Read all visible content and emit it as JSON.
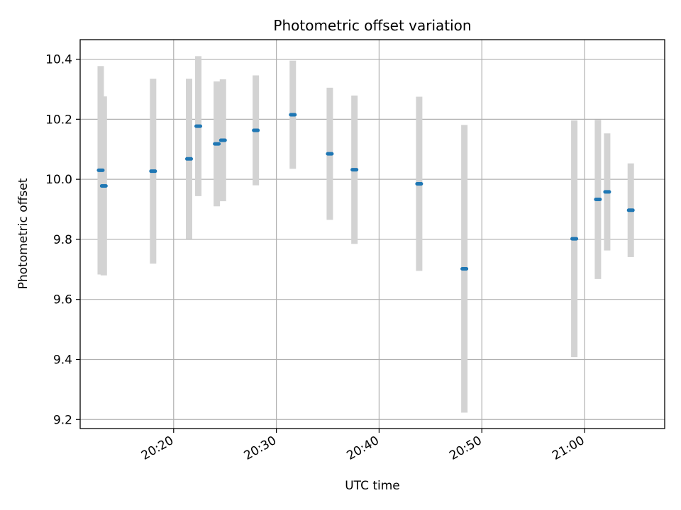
{
  "chart_data": {
    "type": "scatter",
    "title": "Photometric offset variation",
    "xlabel": "UTC time",
    "ylabel": "Photometric offset",
    "x_ticks": [
      "20:20",
      "20:30",
      "20:40",
      "20:50",
      "21:00"
    ],
    "x_tick_minutes": [
      20,
      30,
      40,
      50,
      60
    ],
    "y_ticks": [
      "9.2",
      "9.4",
      "9.6",
      "9.8",
      "10.0",
      "10.2",
      "10.4"
    ],
    "y_tick_values": [
      9.2,
      9.4,
      9.6,
      9.8,
      10.0,
      10.2,
      10.4
    ],
    "xlim_minutes": [
      10.9,
      67.8
    ],
    "ylim": [
      9.17,
      10.465
    ],
    "grid": true,
    "point_color": "#1f77b4",
    "errorbar_color": "#d3d3d3",
    "points": [
      {
        "t": "20:12:54",
        "min": 12.9,
        "y": 10.03,
        "err": 0.347
      },
      {
        "t": "20:13:12",
        "min": 13.2,
        "y": 9.978,
        "err": 0.298
      },
      {
        "t": "20:18:00",
        "min": 18.0,
        "y": 10.027,
        "err": 0.308
      },
      {
        "t": "20:21:30",
        "min": 21.5,
        "y": 10.068,
        "err": 0.267
      },
      {
        "t": "20:22:24",
        "min": 22.4,
        "y": 10.177,
        "err": 0.233
      },
      {
        "t": "20:24:12",
        "min": 24.2,
        "y": 10.118,
        "err": 0.208
      },
      {
        "t": "20:24:48",
        "min": 24.8,
        "y": 10.13,
        "err": 0.203
      },
      {
        "t": "20:28:00",
        "min": 28.0,
        "y": 10.163,
        "err": 0.183
      },
      {
        "t": "20:31:36",
        "min": 31.6,
        "y": 10.215,
        "err": 0.18
      },
      {
        "t": "20:35:12",
        "min": 35.2,
        "y": 10.085,
        "err": 0.22
      },
      {
        "t": "20:37:36",
        "min": 37.6,
        "y": 10.032,
        "err": 0.247
      },
      {
        "t": "20:43:54",
        "min": 43.9,
        "y": 9.985,
        "err": 0.29
      },
      {
        "t": "20:48:18",
        "min": 48.3,
        "y": 9.702,
        "err": 0.479
      },
      {
        "t": "20:59:00",
        "min": 59.0,
        "y": 9.802,
        "err": 0.394
      },
      {
        "t": "21:01:18",
        "min": 61.3,
        "y": 9.933,
        "err": 0.265
      },
      {
        "t": "21:02:12",
        "min": 62.2,
        "y": 9.958,
        "err": 0.195
      },
      {
        "t": "21:04:30",
        "min": 64.5,
        "y": 9.897,
        "err": 0.156
      }
    ]
  }
}
